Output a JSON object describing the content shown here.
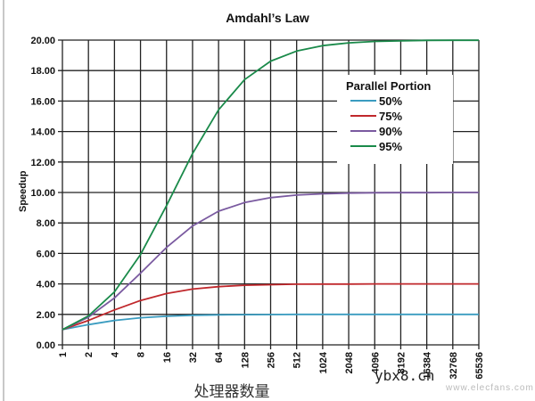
{
  "chart_data": {
    "type": "line",
    "title": "Amdahl’s Law",
    "xlabel": "处理器数量",
    "ylabel": "Speedup",
    "x": [
      "1",
      "2",
      "4",
      "8",
      "16",
      "32",
      "64",
      "128",
      "256",
      "512",
      "1024",
      "2048",
      "4096",
      "8192",
      "16384",
      "32768",
      "65536"
    ],
    "y_ticks": [
      "0.00",
      "2.00",
      "4.00",
      "6.00",
      "8.00",
      "10.00",
      "12.00",
      "14.00",
      "16.00",
      "18.00",
      "20.00"
    ],
    "ylim": [
      0,
      20
    ],
    "x_scale": "log2",
    "grid": true,
    "legend": {
      "title": "Parallel Portion",
      "position": "upper-right-inside"
    },
    "series": [
      {
        "name": "50%",
        "color": "#3a9cc0",
        "values": [
          1.0,
          1.33,
          1.6,
          1.78,
          1.88,
          1.94,
          1.97,
          1.98,
          1.99,
          2.0,
          2.0,
          2.0,
          2.0,
          2.0,
          2.0,
          2.0,
          2.0
        ]
      },
      {
        "name": "75%",
        "color": "#c0282c",
        "values": [
          1.0,
          1.6,
          2.29,
          2.91,
          3.37,
          3.66,
          3.82,
          3.91,
          3.95,
          3.98,
          3.99,
          3.99,
          4.0,
          4.0,
          4.0,
          4.0,
          4.0
        ]
      },
      {
        "name": "90%",
        "color": "#7a5aa0",
        "values": [
          1.0,
          1.82,
          3.08,
          4.71,
          6.4,
          7.8,
          8.77,
          9.34,
          9.66,
          9.83,
          9.91,
          9.96,
          9.98,
          9.99,
          9.99,
          10.0,
          10.0
        ]
      },
      {
        "name": "95%",
        "color": "#1a8a4a",
        "values": [
          1.0,
          1.9,
          3.48,
          5.93,
          9.14,
          12.55,
          15.42,
          17.41,
          18.62,
          19.28,
          19.64,
          19.82,
          19.91,
          19.95,
          19.98,
          19.99,
          19.99
        ]
      }
    ]
  },
  "watermarks": {
    "primary": "ybx8.cn",
    "secondary": "www.elecfans.com"
  }
}
